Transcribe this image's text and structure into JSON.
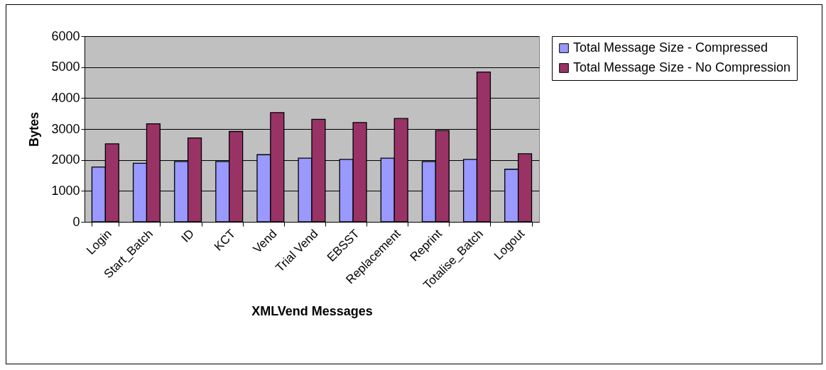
{
  "chart_data": {
    "type": "bar",
    "xlabel": "XMLVend Messages",
    "ylabel": "Bytes",
    "categories": [
      "Login",
      "Start_Batch",
      "ID",
      "KCT",
      "Vend",
      "Trial Vend",
      "EBSST",
      "Replacement",
      "Reprint",
      "Totalise_Batch",
      "Logout"
    ],
    "series": [
      {
        "name": "Total Message Size - Compressed",
        "color": "#9999ff",
        "values": [
          1770,
          1890,
          1950,
          1950,
          2170,
          2060,
          2020,
          2060,
          1950,
          2020,
          1700
        ]
      },
      {
        "name": "Total Message Size - No Compression",
        "color": "#993366",
        "values": [
          2520,
          3170,
          2710,
          2920,
          3530,
          3310,
          3210,
          3340,
          2950,
          4840,
          2200
        ]
      }
    ],
    "ylim": [
      0,
      6000
    ],
    "yticks": [
      0,
      1000,
      2000,
      3000,
      4000,
      5000,
      6000
    ],
    "grid": "y",
    "legend": "right"
  }
}
